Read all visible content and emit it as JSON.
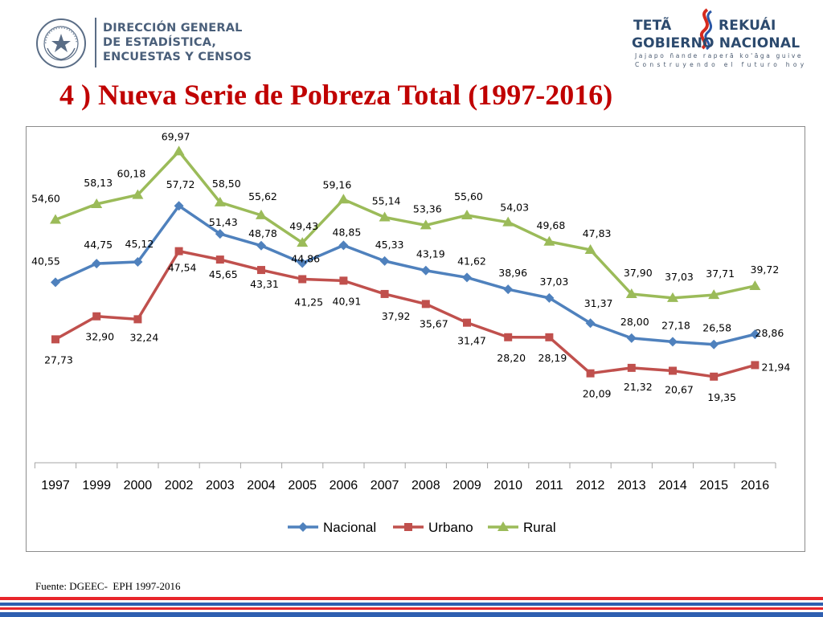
{
  "header": {
    "left_logo": {
      "seal_text": "REPÚBLICA DEL PARAGUAY",
      "name_lines": [
        "DIRECCIÓN GENERAL",
        "DE ESTADÍSTICA,",
        "ENCUESTAS Y CENSOS"
      ]
    },
    "right_logo": {
      "line1_a": "TETÃ",
      "line1_b": "REKUÁI",
      "line2": "GOBIERNO NACIONAL",
      "line3": "Jajapo ñande raperã ko'ãga guive",
      "line4": "Construyendo el futuro hoy"
    }
  },
  "title": "4 ) Nueva Serie de Pobreza Total (1997-2016)",
  "source": "Fuente: DGEEC-  EPH 1997-2016",
  "colors": {
    "title": "#c00000",
    "nacional": "#4f81bd",
    "urbano": "#c0504d",
    "rural": "#9bbb59",
    "stripe_red": "#e8262b",
    "stripe_blue": "#2f5fb0"
  },
  "chart_data": {
    "type": "line",
    "categories": [
      "1997",
      "1999",
      "2000",
      "2002",
      "2003",
      "2004",
      "2005",
      "2006",
      "2007",
      "2008",
      "2009",
      "2010",
      "2011",
      "2012",
      "2013",
      "2014",
      "2015",
      "2016"
    ],
    "series": [
      {
        "name": "Nacional",
        "marker": "diamond",
        "values": [
          40.55,
          44.75,
          45.12,
          57.72,
          51.43,
          48.78,
          44.86,
          48.85,
          45.33,
          43.19,
          41.62,
          38.96,
          37.03,
          31.37,
          28.0,
          27.18,
          26.58,
          28.86
        ],
        "labels": [
          "40,55",
          "44,75",
          "45,12",
          "57,72",
          "51,43",
          "48,78",
          "44,86",
          "48,85",
          "45,33",
          "43,19",
          "41,62",
          "38,96",
          "37,03",
          "31,37",
          "28,00",
          "27,18",
          "26,58",
          "28,86"
        ]
      },
      {
        "name": "Urbano",
        "marker": "square",
        "values": [
          27.73,
          32.9,
          32.24,
          47.54,
          45.65,
          43.31,
          41.25,
          40.91,
          37.92,
          35.67,
          31.47,
          28.2,
          28.19,
          20.09,
          21.32,
          20.67,
          19.35,
          21.94
        ],
        "labels": [
          "27,73",
          "32,90",
          "32,24",
          "47,54",
          "45,65",
          "43,31",
          "41,25",
          "40,91",
          "37,92",
          "35,67",
          "31,47",
          "28,20",
          "28,19",
          "20,09",
          "21,32",
          "20,67",
          "19,35",
          "21,94"
        ]
      },
      {
        "name": "Rural",
        "marker": "triangle",
        "values": [
          54.6,
          58.13,
          60.18,
          69.97,
          58.5,
          55.62,
          49.43,
          59.16,
          55.14,
          53.36,
          55.6,
          54.03,
          49.68,
          47.83,
          37.9,
          37.03,
          37.71,
          39.72
        ],
        "labels": [
          "54,60",
          "58,13",
          "60,18",
          "69,97",
          "58,50",
          "55,62",
          "49,43",
          "59,16",
          "55,14",
          "53,36",
          "55,60",
          "54,03",
          "49,68",
          "47,83",
          "37,90",
          "37,03",
          "37,71",
          "39,72"
        ]
      }
    ],
    "title": "",
    "xlabel": "",
    "ylabel": "",
    "ylim": [
      0,
      78
    ],
    "grid": false,
    "legend": "bottom",
    "data_labels": true
  }
}
